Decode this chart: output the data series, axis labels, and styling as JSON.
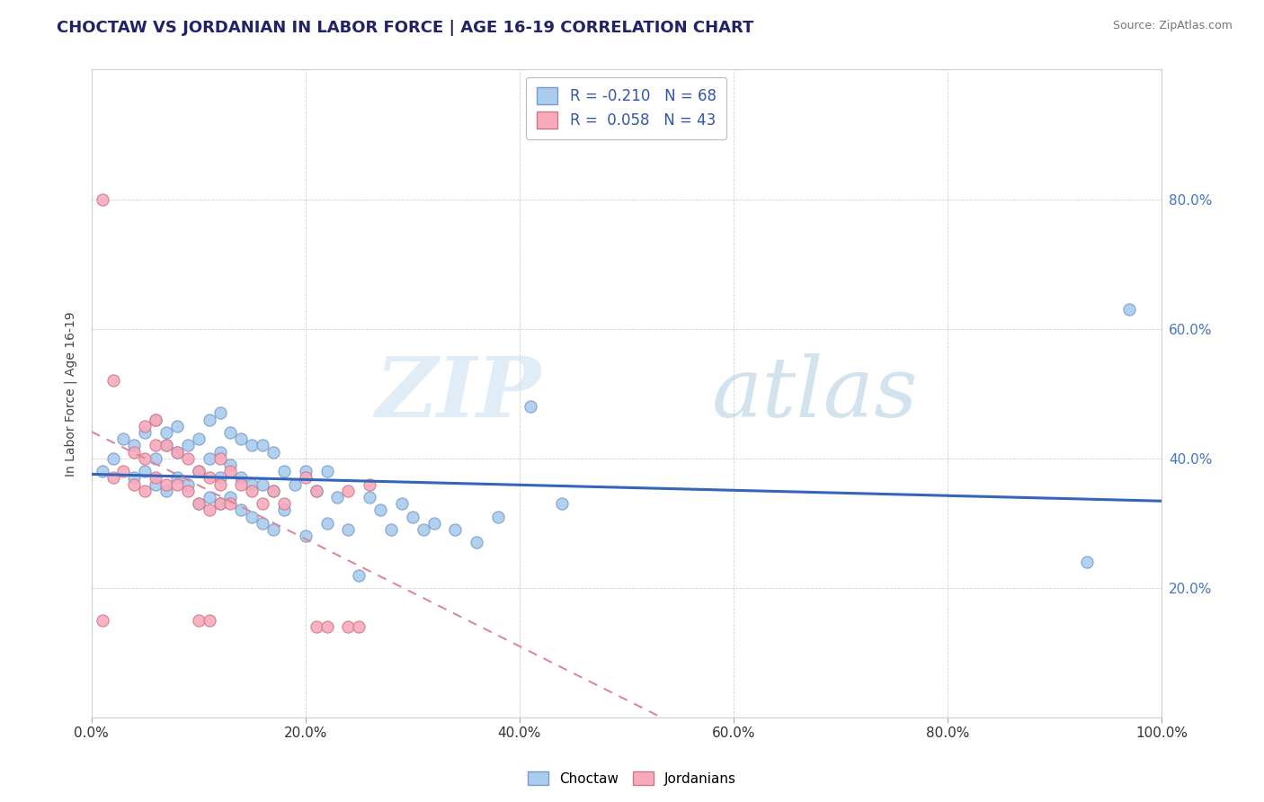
{
  "title": "CHOCTAW VS JORDANIAN IN LABOR FORCE | AGE 16-19 CORRELATION CHART",
  "source": "Source: ZipAtlas.com",
  "ylabel": "In Labor Force | Age 16-19",
  "xlim": [
    0.0,
    1.0
  ],
  "ylim": [
    0.0,
    1.0
  ],
  "xticks": [
    0.0,
    0.2,
    0.4,
    0.6,
    0.8,
    1.0
  ],
  "yticks": [
    0.2,
    0.4,
    0.6,
    0.8
  ],
  "xticklabels": [
    "0.0%",
    "20.0%",
    "40.0%",
    "60.0%",
    "80.0%",
    "100.0%"
  ],
  "yticklabels_right": [
    "20.0%",
    "40.0%",
    "60.0%",
    "80.0%"
  ],
  "background_color": "#ffffff",
  "grid_color": "#cccccc",
  "legend_r_choctaw": "-0.210",
  "legend_n_choctaw": "68",
  "legend_r_jordanian": "0.058",
  "legend_n_jordanian": "43",
  "choctaw_color": "#aaccee",
  "choctaw_edge_color": "#7799cc",
  "choctaw_line_color": "#3366bb",
  "jordanian_color": "#f8aabc",
  "jordanian_edge_color": "#cc7788",
  "jordanian_line_color": "#dd8899",
  "choctaw_x": [
    0.01,
    0.02,
    0.03,
    0.04,
    0.04,
    0.05,
    0.05,
    0.06,
    0.06,
    0.06,
    0.07,
    0.07,
    0.07,
    0.08,
    0.08,
    0.08,
    0.09,
    0.09,
    0.1,
    0.1,
    0.1,
    0.11,
    0.11,
    0.11,
    0.12,
    0.12,
    0.12,
    0.12,
    0.13,
    0.13,
    0.13,
    0.14,
    0.14,
    0.14,
    0.15,
    0.15,
    0.15,
    0.16,
    0.16,
    0.16,
    0.17,
    0.17,
    0.17,
    0.18,
    0.18,
    0.19,
    0.2,
    0.2,
    0.21,
    0.22,
    0.22,
    0.23,
    0.24,
    0.25,
    0.26,
    0.27,
    0.28,
    0.29,
    0.3,
    0.31,
    0.32,
    0.34,
    0.36,
    0.38,
    0.41,
    0.44,
    0.93,
    0.97
  ],
  "choctaw_y": [
    0.38,
    0.4,
    0.43,
    0.37,
    0.42,
    0.38,
    0.44,
    0.36,
    0.4,
    0.46,
    0.35,
    0.42,
    0.44,
    0.37,
    0.41,
    0.45,
    0.36,
    0.42,
    0.33,
    0.38,
    0.43,
    0.34,
    0.4,
    0.46,
    0.33,
    0.37,
    0.41,
    0.47,
    0.34,
    0.39,
    0.44,
    0.32,
    0.37,
    0.43,
    0.31,
    0.36,
    0.42,
    0.3,
    0.36,
    0.42,
    0.29,
    0.35,
    0.41,
    0.32,
    0.38,
    0.36,
    0.28,
    0.38,
    0.35,
    0.3,
    0.38,
    0.34,
    0.29,
    0.22,
    0.34,
    0.32,
    0.29,
    0.33,
    0.31,
    0.29,
    0.3,
    0.29,
    0.27,
    0.31,
    0.48,
    0.33,
    0.24,
    0.63
  ],
  "jordanian_x": [
    0.01,
    0.02,
    0.02,
    0.03,
    0.04,
    0.04,
    0.05,
    0.05,
    0.05,
    0.06,
    0.06,
    0.06,
    0.07,
    0.07,
    0.08,
    0.08,
    0.09,
    0.09,
    0.1,
    0.1,
    0.11,
    0.11,
    0.12,
    0.12,
    0.12,
    0.13,
    0.13,
    0.14,
    0.15,
    0.16,
    0.17,
    0.18,
    0.2,
    0.21,
    0.21,
    0.22,
    0.24,
    0.24,
    0.25,
    0.26,
    0.1,
    0.11,
    0.01
  ],
  "jordanian_y": [
    0.8,
    0.37,
    0.52,
    0.38,
    0.36,
    0.41,
    0.35,
    0.4,
    0.45,
    0.37,
    0.42,
    0.46,
    0.36,
    0.42,
    0.36,
    0.41,
    0.35,
    0.4,
    0.33,
    0.38,
    0.32,
    0.37,
    0.33,
    0.36,
    0.4,
    0.33,
    0.38,
    0.36,
    0.35,
    0.33,
    0.35,
    0.33,
    0.37,
    0.35,
    0.14,
    0.14,
    0.14,
    0.35,
    0.14,
    0.36,
    0.15,
    0.15,
    0.15
  ]
}
